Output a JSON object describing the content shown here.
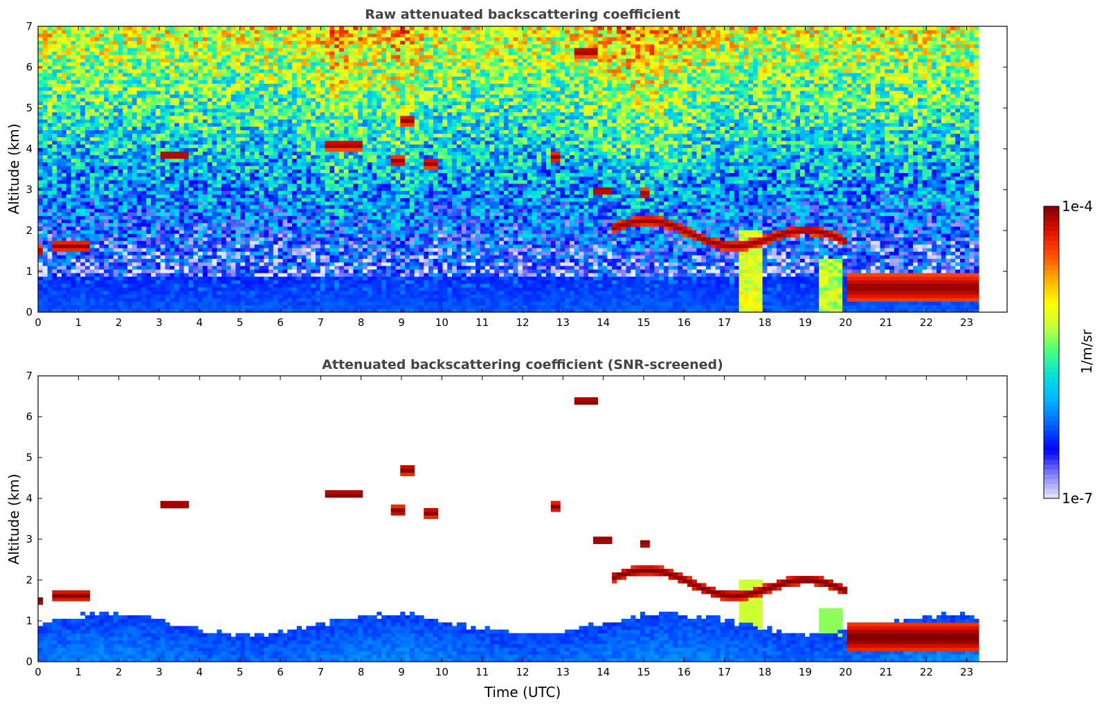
{
  "chart_data": [
    {
      "type": "heatmap",
      "title": "Raw attenuated backscattering coefficient",
      "xlabel": "",
      "ylabel": "Altitude (km)",
      "xlim": [
        0,
        24
      ],
      "ylim": [
        0,
        7
      ],
      "xticks": [
        0,
        1,
        2,
        3,
        4,
        5,
        6,
        7,
        8,
        9,
        10,
        11,
        12,
        13,
        14,
        15,
        16,
        17,
        18,
        19,
        20,
        21,
        22,
        23
      ],
      "yticks": [
        0,
        1,
        2,
        3,
        4,
        5,
        6,
        7
      ],
      "data_end_time": 23.3,
      "grid": false,
      "features": [
        {
          "t0": 0.0,
          "t1": 0.1,
          "alt": 1.5,
          "desc": "cloud layer"
        },
        {
          "t0": 0.4,
          "t1": 1.3,
          "alt": 1.62,
          "desc": "cloud layer"
        },
        {
          "t0": 3.0,
          "t1": 3.75,
          "alt": 3.85,
          "desc": "cloud layer"
        },
        {
          "t0": 7.1,
          "t1": 8.0,
          "alt": 4.1,
          "desc": "cloud layer"
        },
        {
          "t0": 8.7,
          "t1": 9.1,
          "alt": 3.7,
          "desc": "cloud layer"
        },
        {
          "t0": 9.0,
          "t1": 9.3,
          "alt": 4.7,
          "desc": "cloud layer"
        },
        {
          "t0": 9.5,
          "t1": 9.9,
          "alt": 3.65,
          "desc": "cloud layer"
        },
        {
          "t0": 12.7,
          "t1": 12.9,
          "alt": 3.8,
          "desc": "cloud layer"
        },
        {
          "t0": 13.3,
          "t1": 13.9,
          "alt": 6.38,
          "desc": "cloud layer"
        },
        {
          "t0": 13.7,
          "t1": 14.2,
          "alt": 2.98,
          "desc": "cloud layer"
        },
        {
          "t0": 14.9,
          "t1": 15.1,
          "alt": 2.9,
          "desc": "cloud layer"
        },
        {
          "t0": 14.2,
          "t1": 20.0,
          "alt": 2.0,
          "desc": "boundary-layer top cloud"
        },
        {
          "t0": 20.0,
          "t1": 23.3,
          "alt": 0.6,
          "desc": "low cloud / precipitation"
        }
      ]
    },
    {
      "type": "heatmap",
      "title": "Attenuated backscattering coefficient (SNR-screened)",
      "xlabel": "Time (UTC)",
      "ylabel": "Altitude (km)",
      "xlim": [
        0,
        24
      ],
      "ylim": [
        0,
        7
      ],
      "xticks": [
        0,
        1,
        2,
        3,
        4,
        5,
        6,
        7,
        8,
        9,
        10,
        11,
        12,
        13,
        14,
        15,
        16,
        17,
        18,
        19,
        20,
        21,
        22,
        23
      ],
      "yticks": [
        0,
        1,
        2,
        3,
        4,
        5,
        6,
        7
      ],
      "data_end_time": 23.3,
      "grid": false
    }
  ],
  "colorbar": {
    "label": "1/m/sr",
    "min_label": "1e-7",
    "max_label": "1e-4",
    "log_min": -7,
    "log_max": -4,
    "colors": [
      "#e8e8ff",
      "#8080ff",
      "#0000ff",
      "#0060ff",
      "#00b0ff",
      "#00e0e0",
      "#40ff80",
      "#c0ff40",
      "#ffff00",
      "#ffb000",
      "#ff5000",
      "#e01000",
      "#800000"
    ]
  }
}
